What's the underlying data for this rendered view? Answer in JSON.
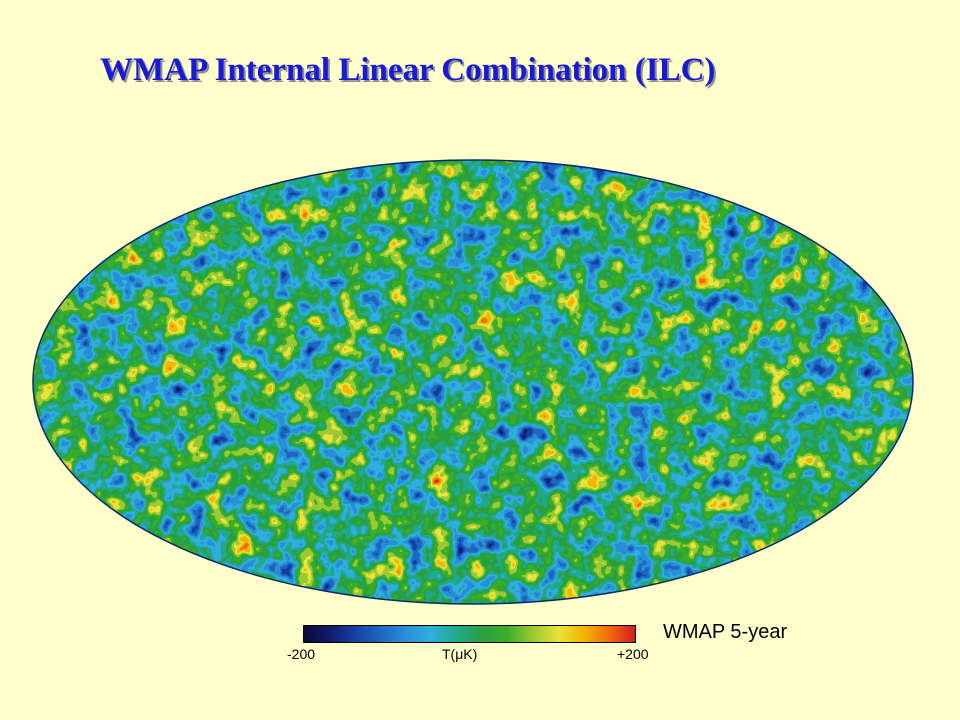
{
  "slide": {
    "title": "WMAP Internal Linear Combination (ILC)"
  },
  "map": {
    "projection": "mollweide",
    "caption": "WMAP 5-year"
  },
  "colorbar": {
    "min_label": "-200",
    "unit_label": "T(μK)",
    "max_label": "+200",
    "colors": [
      "#0a0a33",
      "#121a6a",
      "#1540a0",
      "#1e66c0",
      "#2a8fd8",
      "#31aee0",
      "#22a98a",
      "#2aa040",
      "#3bae2a",
      "#9cc932",
      "#e8e23a",
      "#f5b400",
      "#ef6a10",
      "#d0201a"
    ]
  },
  "colors": {
    "background": "#ffffcc",
    "title": "#1a1ad6",
    "map_base": "#2278c8"
  }
}
